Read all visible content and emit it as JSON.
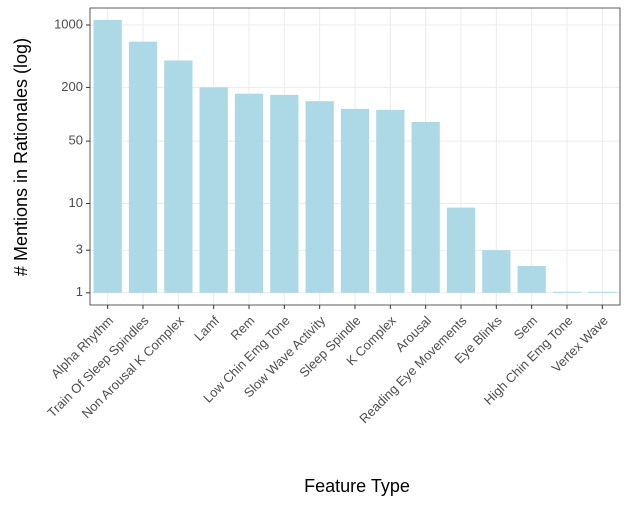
{
  "chart_data": {
    "type": "bar",
    "xlabel": "Feature Type",
    "ylabel": "# Mentions in Rationales (log)",
    "categories": [
      "Alpha Rhythm",
      "Train Of Sleep Spindles",
      "Non Arousal K Complex",
      "Lamf",
      "Rem",
      "Low Chin Emg Tone",
      "Slow Wave Activity",
      "Sleep Spindle",
      "K Complex",
      "Arousal",
      "Reading Eye Movements",
      "Eye Blinks",
      "Sem",
      "High Chin Emg Tone",
      "Vertex Wave"
    ],
    "values": [
      1140,
      650,
      400,
      200,
      170,
      165,
      140,
      115,
      112,
      82,
      9,
      3,
      2,
      1,
      1
    ],
    "color": "#add8e6",
    "log_y": true,
    "ylim": [
      0.73,
      1550
    ],
    "yticks": [
      1,
      3,
      10,
      50,
      200,
      1000
    ],
    "grid": true
  }
}
